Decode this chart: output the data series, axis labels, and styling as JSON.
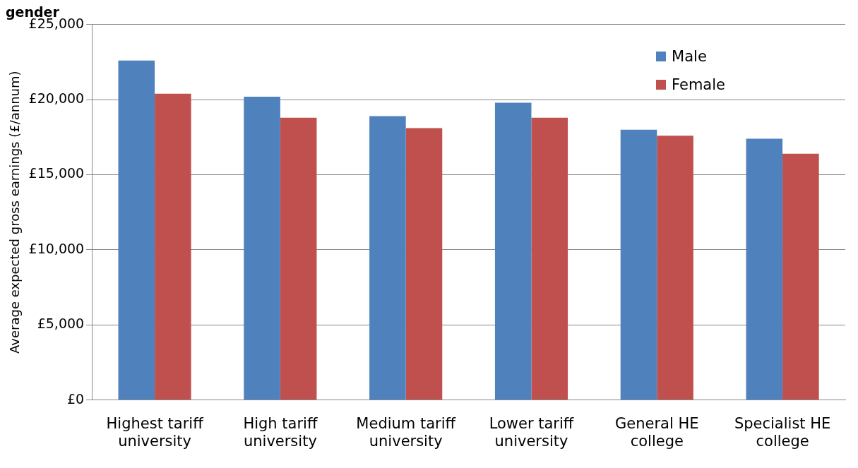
{
  "chart_data": {
    "type": "bar",
    "title": "gender",
    "ylabel": "Average expected gross earnings (£/annum)",
    "categories": [
      "Highest tariff university",
      "High tariff university",
      "Medium tariff university",
      "Lower tariff university",
      "General HE college",
      "Specialist HE college"
    ],
    "series": [
      {
        "name": "Male",
        "color": "#4f81bd",
        "values": [
          22600,
          20200,
          18900,
          19800,
          18000,
          17400
        ]
      },
      {
        "name": "Female",
        "color": "#c0504d",
        "values": [
          20400,
          18800,
          18100,
          18800,
          17600,
          16400
        ]
      }
    ],
    "ylim": [
      0,
      25000
    ],
    "yticks": [
      {
        "value": 0,
        "label": "£0"
      },
      {
        "value": 5000,
        "label": "£5,000"
      },
      {
        "value": 10000,
        "label": "£10,000"
      },
      {
        "value": 15000,
        "label": "£15,000"
      },
      {
        "value": 20000,
        "label": "£20,000"
      },
      {
        "value": 25000,
        "label": "£25,000"
      }
    ],
    "grid": "y",
    "legend": "top right"
  }
}
